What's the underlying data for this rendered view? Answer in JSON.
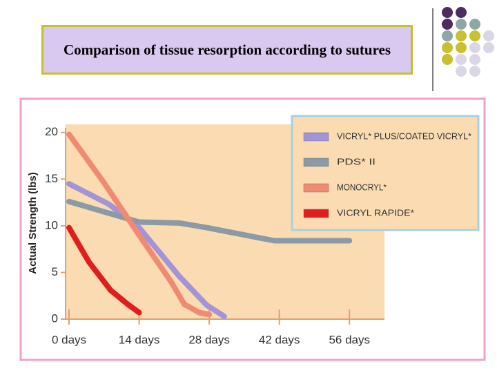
{
  "chart_data": {
    "type": "line",
    "title": "Comparison of tissue resorption according to sutures",
    "y_label": "Actual Strength (lbs)",
    "xlim": [
      0,
      63
    ],
    "ylim": [
      0,
      20.5
    ],
    "xticks": [
      {
        "value": 0,
        "label": "0 days"
      },
      {
        "value": 14,
        "label": "14 days"
      },
      {
        "value": 28,
        "label": "28 days"
      },
      {
        "value": 42,
        "label": "42 days"
      },
      {
        "value": 56,
        "label": "56 days"
      }
    ],
    "yticks": [
      0,
      5,
      10,
      15,
      20
    ],
    "legend": "upper right",
    "series": [
      {
        "name": "VICRYL* PLUS/COATED VICRYL*",
        "color": "#a394d8",
        "x": [
          0,
          8,
          14,
          22,
          27.5,
          31
        ],
        "values": [
          14.5,
          12.3,
          9.8,
          4.6,
          1.5,
          0.3
        ]
      },
      {
        "name": "PDS* II",
        "color": "#8c9aa6",
        "x": [
          0,
          14,
          22,
          27.5,
          41,
          56
        ],
        "values": [
          12.6,
          10.4,
          10.3,
          9.8,
          8.4,
          8.4
        ]
      },
      {
        "name": "MONOCRYL*",
        "color": "#f08a72",
        "x": [
          0,
          7,
          14,
          20.5,
          23,
          26,
          28
        ],
        "values": [
          19.8,
          14.6,
          9,
          3.9,
          1.6,
          0.7,
          0.5
        ]
      },
      {
        "name": "VICRYL RAPIDE*",
        "color": "#e01e1e",
        "x": [
          0,
          4,
          8.3,
          11.7,
          14
        ],
        "values": [
          9.8,
          6.1,
          3.1,
          1.6,
          0.7
        ]
      }
    ]
  }
}
